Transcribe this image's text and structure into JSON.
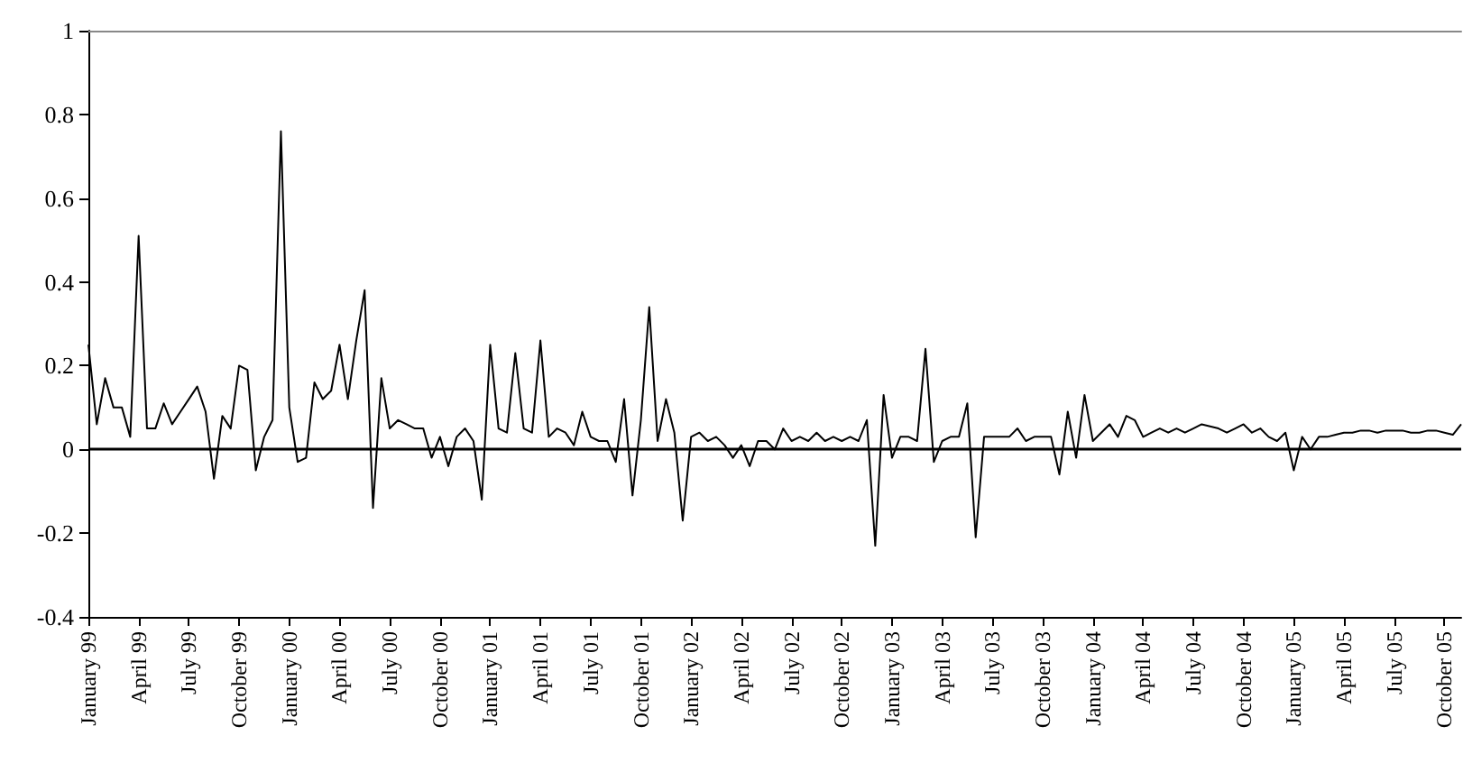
{
  "chart_data": {
    "type": "line",
    "categories": [
      "January 99",
      null,
      null,
      null,
      null,
      null,
      "April 99",
      null,
      null,
      null,
      null,
      null,
      "July 99",
      null,
      null,
      null,
      null,
      null,
      "October 99",
      null,
      null,
      null,
      null,
      null,
      "January 00",
      null,
      null,
      null,
      null,
      null,
      "April 00",
      null,
      null,
      null,
      null,
      null,
      "July 00",
      null,
      null,
      null,
      null,
      null,
      "October 00",
      null,
      null,
      null,
      null,
      null,
      "January 01",
      null,
      null,
      null,
      null,
      null,
      "April 01",
      null,
      null,
      null,
      null,
      null,
      "July 01",
      null,
      null,
      null,
      null,
      null,
      "October 01",
      null,
      null,
      null,
      null,
      null,
      "January 02",
      null,
      null,
      null,
      null,
      null,
      "April 02",
      null,
      null,
      null,
      null,
      null,
      "July 02",
      null,
      null,
      null,
      null,
      null,
      "October 02",
      null,
      null,
      null,
      null,
      null,
      "January 03",
      null,
      null,
      null,
      null,
      null,
      "April 03",
      null,
      null,
      null,
      null,
      null,
      "July 03",
      null,
      null,
      null,
      null,
      null,
      "October 03",
      null,
      null,
      null,
      null,
      null,
      "January 04",
      null,
      null,
      null,
      null,
      null,
      "April 04",
      null,
      null,
      null,
      null,
      null,
      "July 04",
      null,
      null,
      null,
      null,
      null,
      "October 04",
      null,
      null,
      null,
      null,
      null,
      "January 05",
      null,
      null,
      null,
      null,
      null,
      "April 05",
      null,
      null,
      null,
      null,
      null,
      "July 05",
      null,
      null,
      null,
      null,
      null,
      "October 05",
      null,
      null
    ],
    "series": [
      {
        "color": "#000000",
        "values": [
          0.25,
          0.06,
          0.17,
          0.1,
          0.1,
          0.03,
          0.51,
          0.05,
          0.05,
          0.11,
          0.06,
          0.09,
          0.12,
          0.15,
          0.09,
          -0.07,
          0.08,
          0.05,
          0.2,
          0.19,
          -0.05,
          0.03,
          0.07,
          0.76,
          0.1,
          -0.03,
          -0.02,
          0.16,
          0.12,
          0.14,
          0.25,
          0.12,
          0.26,
          0.38,
          -0.14,
          0.17,
          0.05,
          0.07,
          0.06,
          0.05,
          0.05,
          -0.02,
          0.03,
          -0.04,
          0.03,
          0.05,
          0.02,
          -0.12,
          0.25,
          0.05,
          0.04,
          0.23,
          0.05,
          0.04,
          0.26,
          0.03,
          0.05,
          0.04,
          0.01,
          0.09,
          0.03,
          0.02,
          0.02,
          -0.03,
          0.12,
          -0.11,
          0.07,
          0.34,
          0.02,
          0.12,
          0.04,
          -0.17,
          0.03,
          0.04,
          0.02,
          0.03,
          0.01,
          -0.02,
          0.01,
          -0.04,
          0.02,
          0.02,
          0,
          0.05,
          0.02,
          0.03,
          0.02,
          0.04,
          0.02,
          0.03,
          0.02,
          0.03,
          0.02,
          0.07,
          -0.23,
          0.13,
          -0.02,
          0.03,
          0.03,
          0.02,
          0.24,
          -0.03,
          0.02,
          0.03,
          0.03,
          0.11,
          -0.21,
          0.03,
          0.03,
          0.03,
          0.03,
          0.05,
          0.02,
          0.03,
          0.03,
          0.03,
          -0.06,
          0.09,
          -0.02,
          0.13,
          0.02,
          0.04,
          0.06,
          0.03,
          0.08,
          0.07,
          0.03,
          0.04,
          0.05,
          0.04,
          0.05,
          0.04,
          0.05,
          0.06,
          0.055,
          0.05,
          0.04,
          0.05,
          0.06,
          0.04,
          0.05,
          0.03,
          0.02,
          0.04,
          -0.05,
          0.03,
          0,
          0.03,
          0.03,
          0.035,
          0.04,
          0.04,
          0.045,
          0.045,
          0.04,
          0.045,
          0.045,
          0.045,
          0.04,
          0.04,
          0.045,
          0.045,
          0.04,
          0.035,
          0.06
        ]
      }
    ],
    "ylim": [
      -0.4,
      1
    ],
    "yticks": [
      -0.4,
      -0.2,
      0,
      0.2,
      0.4,
      0.6,
      0.8,
      1
    ],
    "ref_lines": [
      {
        "axis": "y",
        "value": 0,
        "color": "#000000"
      }
    ],
    "grid": false,
    "marker": "none",
    "line_style": "solid"
  }
}
